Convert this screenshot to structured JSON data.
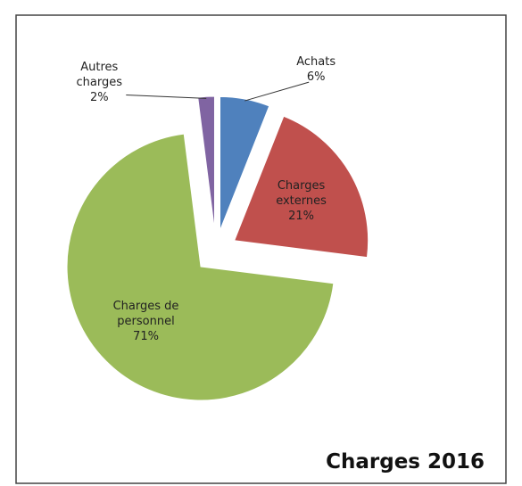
{
  "chart_data": {
    "type": "pie",
    "title": "Charges 2016",
    "categories": [
      "Achats",
      "Charges externes",
      "Charges de personnel",
      "Autres charges"
    ],
    "values": [
      6,
      21,
      71,
      2
    ],
    "value_labels": [
      "6%",
      "21%",
      "71%",
      "2%"
    ],
    "colors": [
      "#4f81bd",
      "#c0504d",
      "#9bbb59",
      "#8064a2"
    ]
  }
}
